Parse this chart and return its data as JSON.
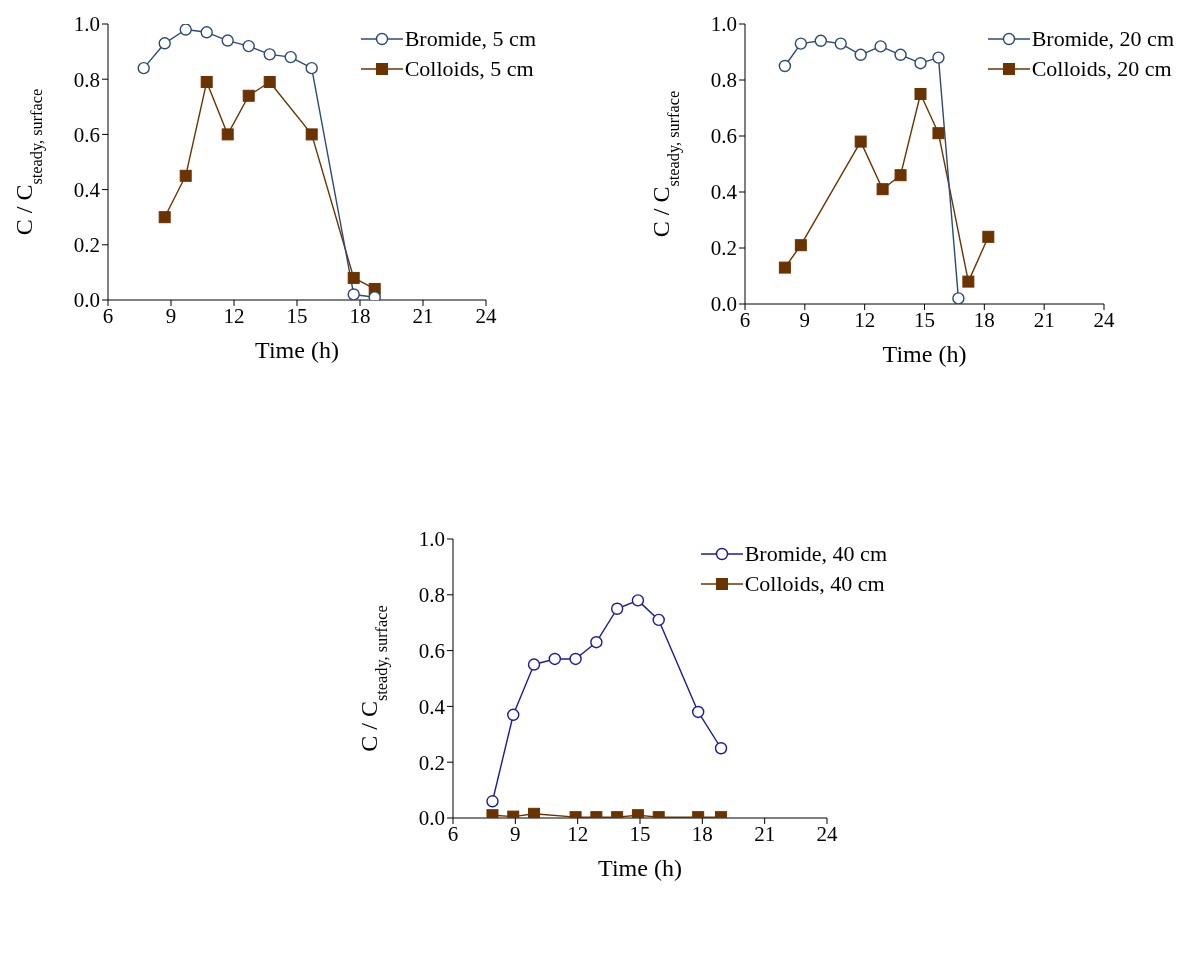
{
  "chart_data": [
    {
      "type": "line",
      "xlabel": "Time (h)",
      "ylabel": "C / C$_{steady, surface}$",
      "xlim": [
        6,
        24
      ],
      "xticks": [
        6,
        9,
        12,
        15,
        18,
        21,
        24
      ],
      "ylim": [
        0,
        1
      ],
      "yticks": [
        {
          "value": 0,
          "label": "0.0"
        },
        {
          "value": 0.2,
          "label": "0.2"
        },
        {
          "value": 0.4,
          "label": "0.4"
        },
        {
          "value": 0.6,
          "label": "0.6"
        },
        {
          "value": 0.8,
          "label": "0.8"
        },
        {
          "value": 1,
          "label": "1.0"
        }
      ],
      "grid": false,
      "legend": "top right",
      "series": [
        {
          "name": "Bromide, 5 cm",
          "color": "#2e4a78",
          "marker": "circle",
          "x": [
            7.7,
            8.7,
            9.7,
            10.7,
            11.7,
            12.7,
            13.7,
            14.7,
            15.7,
            17.7,
            18.7
          ],
          "values": [
            0.84,
            0.93,
            0.98,
            0.97,
            0.94,
            0.92,
            0.89,
            0.88,
            0.84,
            0.02,
            0.01
          ]
        },
        {
          "name": "Colloids, 5 cm",
          "color": "#6b3300",
          "marker": "square",
          "x": [
            8.7,
            9.7,
            10.7,
            11.7,
            12.7,
            13.7,
            15.7,
            17.7,
            18.7
          ],
          "values": [
            0.3,
            0.45,
            0.79,
            0.6,
            0.74,
            0.79,
            0.6,
            0.08,
            0.04
          ]
        }
      ]
    },
    {
      "type": "line",
      "xlabel": "Time (h)",
      "ylabel": "C / C$_{steady, surface}$",
      "xlim": [
        6,
        24
      ],
      "xticks": [
        6,
        9,
        12,
        15,
        18,
        21,
        24
      ],
      "ylim": [
        0,
        1
      ],
      "yticks": [
        {
          "value": 0,
          "label": "0.0"
        },
        {
          "value": 0.2,
          "label": "0.2"
        },
        {
          "value": 0.4,
          "label": "0.4"
        },
        {
          "value": 0.6,
          "label": "0.6"
        },
        {
          "value": 0.8,
          "label": "0.8"
        },
        {
          "value": 1,
          "label": "1.0"
        }
      ],
      "grid": false,
      "legend": "top right",
      "series": [
        {
          "name": "Bromide, 20 cm",
          "color": "#2e4a78",
          "marker": "circle",
          "x": [
            8.0,
            8.8,
            9.8,
            10.8,
            11.8,
            12.8,
            13.8,
            14.8,
            15.7,
            16.7
          ],
          "values": [
            0.85,
            0.93,
            0.94,
            0.93,
            0.89,
            0.92,
            0.89,
            0.86,
            0.88,
            0.02
          ]
        },
        {
          "name": "Colloids, 20 cm",
          "color": "#6b3300",
          "marker": "square",
          "x": [
            8.0,
            8.8,
            11.8,
            12.9,
            13.8,
            14.8,
            15.7,
            17.2,
            18.2
          ],
          "values": [
            0.13,
            0.21,
            0.58,
            0.41,
            0.46,
            0.75,
            0.61,
            0.08,
            0.24
          ]
        }
      ]
    },
    {
      "type": "line",
      "xlabel": "Time (h)",
      "ylabel": "C / C$_{steady, surface}$",
      "xlim": [
        6,
        24
      ],
      "xticks": [
        6,
        9,
        12,
        15,
        18,
        21,
        24
      ],
      "ylim": [
        0,
        1
      ],
      "yticks": [
        {
          "value": 0,
          "label": "0.0"
        },
        {
          "value": 0.2,
          "label": "0.2"
        },
        {
          "value": 0.4,
          "label": "0.4"
        },
        {
          "value": 0.6,
          "label": "0.6"
        },
        {
          "value": 0.8,
          "label": "0.8"
        },
        {
          "value": 1,
          "label": "1.0"
        }
      ],
      "grid": false,
      "legend": "top right",
      "series": [
        {
          "name": "Bromide, 40 cm",
          "color": "#1a1aa0",
          "marker": "circle",
          "x": [
            7.9,
            8.9,
            9.9,
            10.9,
            11.9,
            12.9,
            13.9,
            14.9,
            15.9,
            17.8,
            18.9
          ],
          "values": [
            0.06,
            0.37,
            0.55,
            0.57,
            0.57,
            0.63,
            0.75,
            0.78,
            0.71,
            0.38,
            0.25
          ]
        },
        {
          "name": "Colloids, 40 cm",
          "color": "#6b3300",
          "marker": "square",
          "x": [
            7.9,
            8.9,
            9.9,
            11.9,
            12.9,
            13.9,
            14.9,
            15.9,
            17.8,
            18.9
          ],
          "values": [
            0.01,
            0.005,
            0.015,
            0.003,
            0.003,
            0.003,
            0.01,
            0.003,
            0.003,
            0.003
          ]
        }
      ]
    }
  ]
}
